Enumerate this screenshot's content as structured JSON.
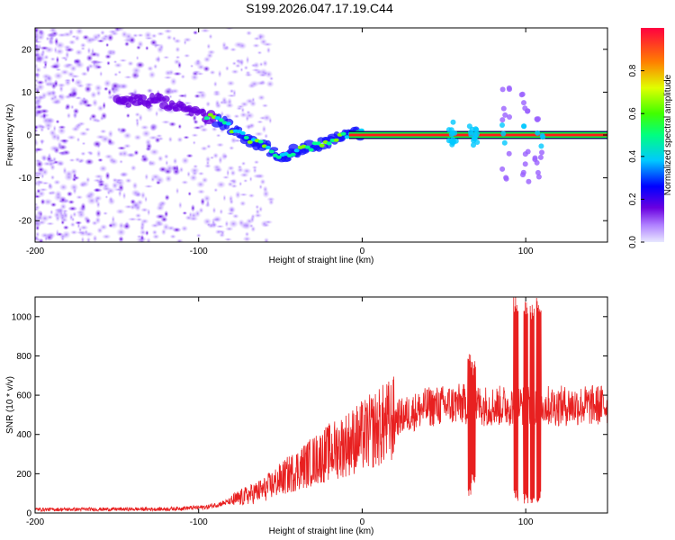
{
  "title": "S199.2026.047.17.19.C44",
  "colors": {
    "signal": "#ff1a1a",
    "snr_line": "#e82020",
    "frame": "#000000"
  },
  "chart_data": [
    {
      "type": "heatmap",
      "name": "spectrogram",
      "xlabel": "Height of straight line (km)",
      "ylabel": "Frequency (Hz)",
      "xlim": [
        -200,
        150
      ],
      "ylim": [
        -25,
        25
      ],
      "xticks": [
        -200,
        -100,
        0,
        100
      ],
      "yticks": [
        -20,
        -10,
        0,
        10,
        20
      ],
      "xtick_labels": [
        "-200",
        "-100",
        "0",
        "100"
      ],
      "ytick_labels": [
        "-20",
        "-10",
        "0",
        "10",
        "20"
      ],
      "colorbar": {
        "label": "Normalized spectral amplitude",
        "range": [
          0,
          1
        ],
        "ticks": [
          0.0,
          0.2,
          0.4,
          0.6,
          0.8
        ],
        "tick_labels": [
          "0.0",
          "0.2",
          "0.4",
          "0.6",
          "0.8"
        ]
      },
      "signal_track": {
        "x": [
          -140,
          -125,
          -110,
          -100,
          -92,
          -85,
          -78,
          -70,
          -62,
          -55,
          -48,
          -42,
          -38,
          -32,
          -25,
          -18,
          -12,
          -6,
          0,
          5,
          10,
          150
        ],
        "y": [
          8,
          8,
          6,
          5,
          4,
          3,
          1,
          -1,
          -2,
          -4,
          -5,
          -4,
          -3,
          -3,
          -2,
          -1,
          0,
          0.5,
          0.5,
          0.3,
          0,
          0
        ]
      },
      "noise_region_x": [
        -200,
        -95
      ],
      "bursts_x": [
        55,
        68,
        88,
        100,
        108
      ]
    },
    {
      "type": "line",
      "name": "snr",
      "xlabel": "Height of straight line (km)",
      "ylabel": "SNR (10 * v/v)",
      "xlim": [
        -200,
        150
      ],
      "ylim": [
        0,
        1100
      ],
      "xticks": [
        -200,
        -100,
        0,
        100
      ],
      "yticks": [
        0,
        200,
        400,
        600,
        800,
        1000
      ],
      "xtick_labels": [
        "-200",
        "-100",
        "0",
        "100"
      ],
      "ytick_labels": [
        "0",
        "200",
        "400",
        "600",
        "800",
        "1000"
      ],
      "envelope": {
        "x": [
          -200,
          -120,
          -95,
          -80,
          -60,
          -40,
          -20,
          0,
          20,
          40,
          60,
          80,
          100,
          120,
          150
        ],
        "y": [
          18,
          20,
          30,
          60,
          120,
          220,
          310,
          390,
          480,
          540,
          555,
          545,
          550,
          545,
          550
        ]
      },
      "spikes": [
        {
          "x": 66,
          "min": 70,
          "max": 820
        },
        {
          "x": 68,
          "min": 150,
          "max": 780
        },
        {
          "x": 94,
          "min": 60,
          "max": 1100
        },
        {
          "x": 100,
          "min": 40,
          "max": 1080
        },
        {
          "x": 104,
          "min": 30,
          "max": 1060
        },
        {
          "x": 108,
          "min": 50,
          "max": 1100
        }
      ]
    }
  ]
}
